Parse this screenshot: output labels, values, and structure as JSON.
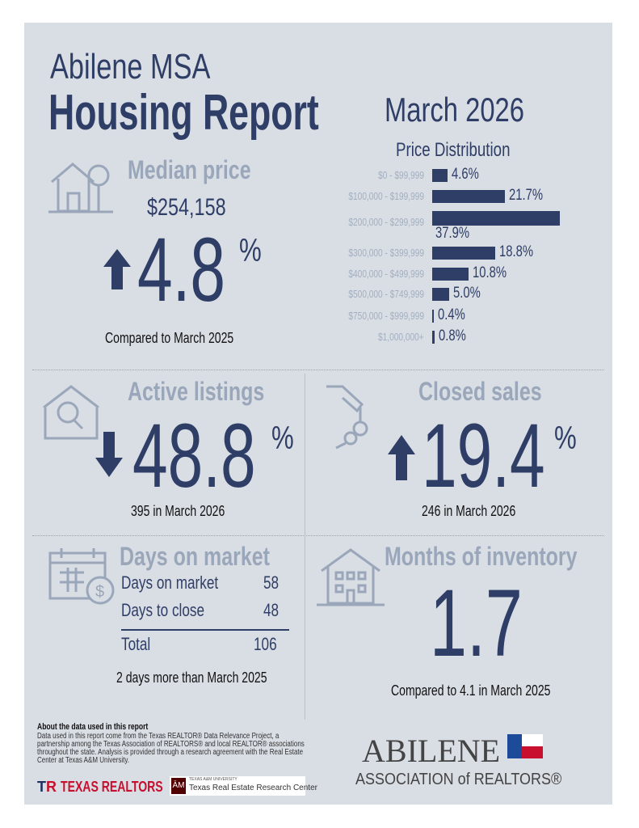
{
  "header": {
    "region": "Abilene MSA",
    "title": "Housing Report",
    "period": "March 2026"
  },
  "median_price": {
    "label": "Median price",
    "value": "$254,158",
    "direction": "up",
    "change": "4.8",
    "unit": "%",
    "note": "Compared to March 2025"
  },
  "price_distribution": {
    "title": "Price Distribution",
    "bars": [
      {
        "range": "$0 - $99,999",
        "pct": 4.6,
        "label": "4.6%"
      },
      {
        "range": "$100,000 - $199,999",
        "pct": 21.7,
        "label": "21.7%"
      },
      {
        "range": "$200,000 - $299,999",
        "pct": 37.9,
        "label": "37.9%"
      },
      {
        "range": "$300,000 - $399,999",
        "pct": 18.8,
        "label": "18.8%"
      },
      {
        "range": "$400,000 - $499,999",
        "pct": 10.8,
        "label": "10.8%"
      },
      {
        "range": "$500,000 - $749,999",
        "pct": 5.0,
        "label": "5.0%"
      },
      {
        "range": "$750,000 - $999,999",
        "pct": 0.4,
        "label": "0.4%"
      },
      {
        "range": "$1,000,000+",
        "pct": 0.8,
        "label": "0.8%"
      }
    ],
    "color": "#2f3e66"
  },
  "active_listings": {
    "label": "Active listings",
    "direction": "down",
    "change": "48.8",
    "unit": "%",
    "note": "395 in March 2026"
  },
  "closed_sales": {
    "label": "Closed sales",
    "direction": "up",
    "change": "19.4",
    "unit": "%",
    "note": "246 in March 2026"
  },
  "days_on_market": {
    "label": "Days on market",
    "rows": [
      {
        "name": "Days on market",
        "value": "58"
      },
      {
        "name": "Days to close",
        "value": "48"
      }
    ],
    "total_label": "Total",
    "total_value": "106",
    "note": "2 days more than March 2025"
  },
  "months_inventory": {
    "label": "Months of inventory",
    "value": "1.7",
    "note": "Compared to 4.1 in March 2025"
  },
  "footer": {
    "about_title": "About the data used in this report",
    "about_text": "Data used in this report come from the Texas REALTOR® Data Relevance Project, a partnership among the Texas Association of REALTORS® and local REALTOR® associations throughout the state. Analysis is provided through a research agreement with the Real Estate Center at Texas A&M University.",
    "texas_realtors": "TEXAS REALTORS",
    "tamu_small": "TEXAS A&M UNIVERSITY",
    "tamu": "Texas Real Estate Research Center",
    "assoc_line1": "ABILENE",
    "assoc_line2": "ASSOCIATION of REALTORS®"
  },
  "colors": {
    "navy": "#2f3e66",
    "slate": "#9aa7ba",
    "background": "#d9dde4",
    "red": "#c8102e"
  }
}
